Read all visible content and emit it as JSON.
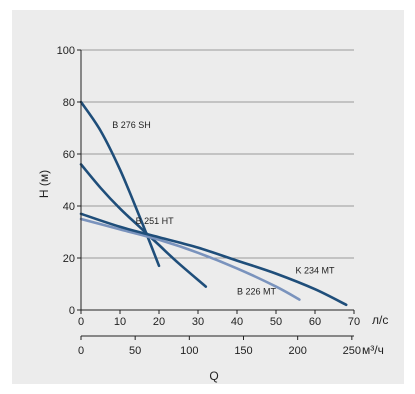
{
  "chart_data": {
    "type": "line",
    "title": "",
    "ylabel": "H (м)",
    "xlabel": "Q",
    "primary_x_unit": "л/с",
    "secondary_x_unit": "м³/ч",
    "xlim": [
      0,
      70
    ],
    "ylim": [
      0,
      100
    ],
    "x_ticks": [
      "0",
      "10",
      "20",
      "30",
      "40",
      "50",
      "60",
      "70"
    ],
    "y_ticks": [
      "0",
      "20",
      "40",
      "60",
      "80",
      "100"
    ],
    "secondary_x_ticks": [
      "0",
      "50",
      "100",
      "150",
      "200",
      "250"
    ],
    "grid": "horizontal",
    "series": [
      {
        "name": "B 276 SH",
        "color": "#1f4e7a",
        "x": [
          0,
          5,
          10,
          15,
          20
        ],
        "y": [
          80,
          69,
          54,
          36,
          17
        ]
      },
      {
        "name": "B 251 HT",
        "color": "#1f4e7a",
        "x": [
          0,
          5,
          10,
          15,
          20,
          25,
          32
        ],
        "y": [
          56,
          47,
          39,
          32,
          25,
          18,
          9
        ]
      },
      {
        "name": "B 226 MT",
        "color": "#7a93bd",
        "x": [
          0,
          10,
          20,
          30,
          40,
          50,
          56
        ],
        "y": [
          35,
          31,
          27,
          22,
          16,
          9,
          4
        ]
      },
      {
        "name": "K 234 MT",
        "color": "#1f4e7a",
        "x": [
          0,
          10,
          20,
          30,
          40,
          50,
          60,
          68
        ],
        "y": [
          37,
          32,
          28,
          24,
          19,
          14,
          8,
          2
        ]
      }
    ]
  }
}
